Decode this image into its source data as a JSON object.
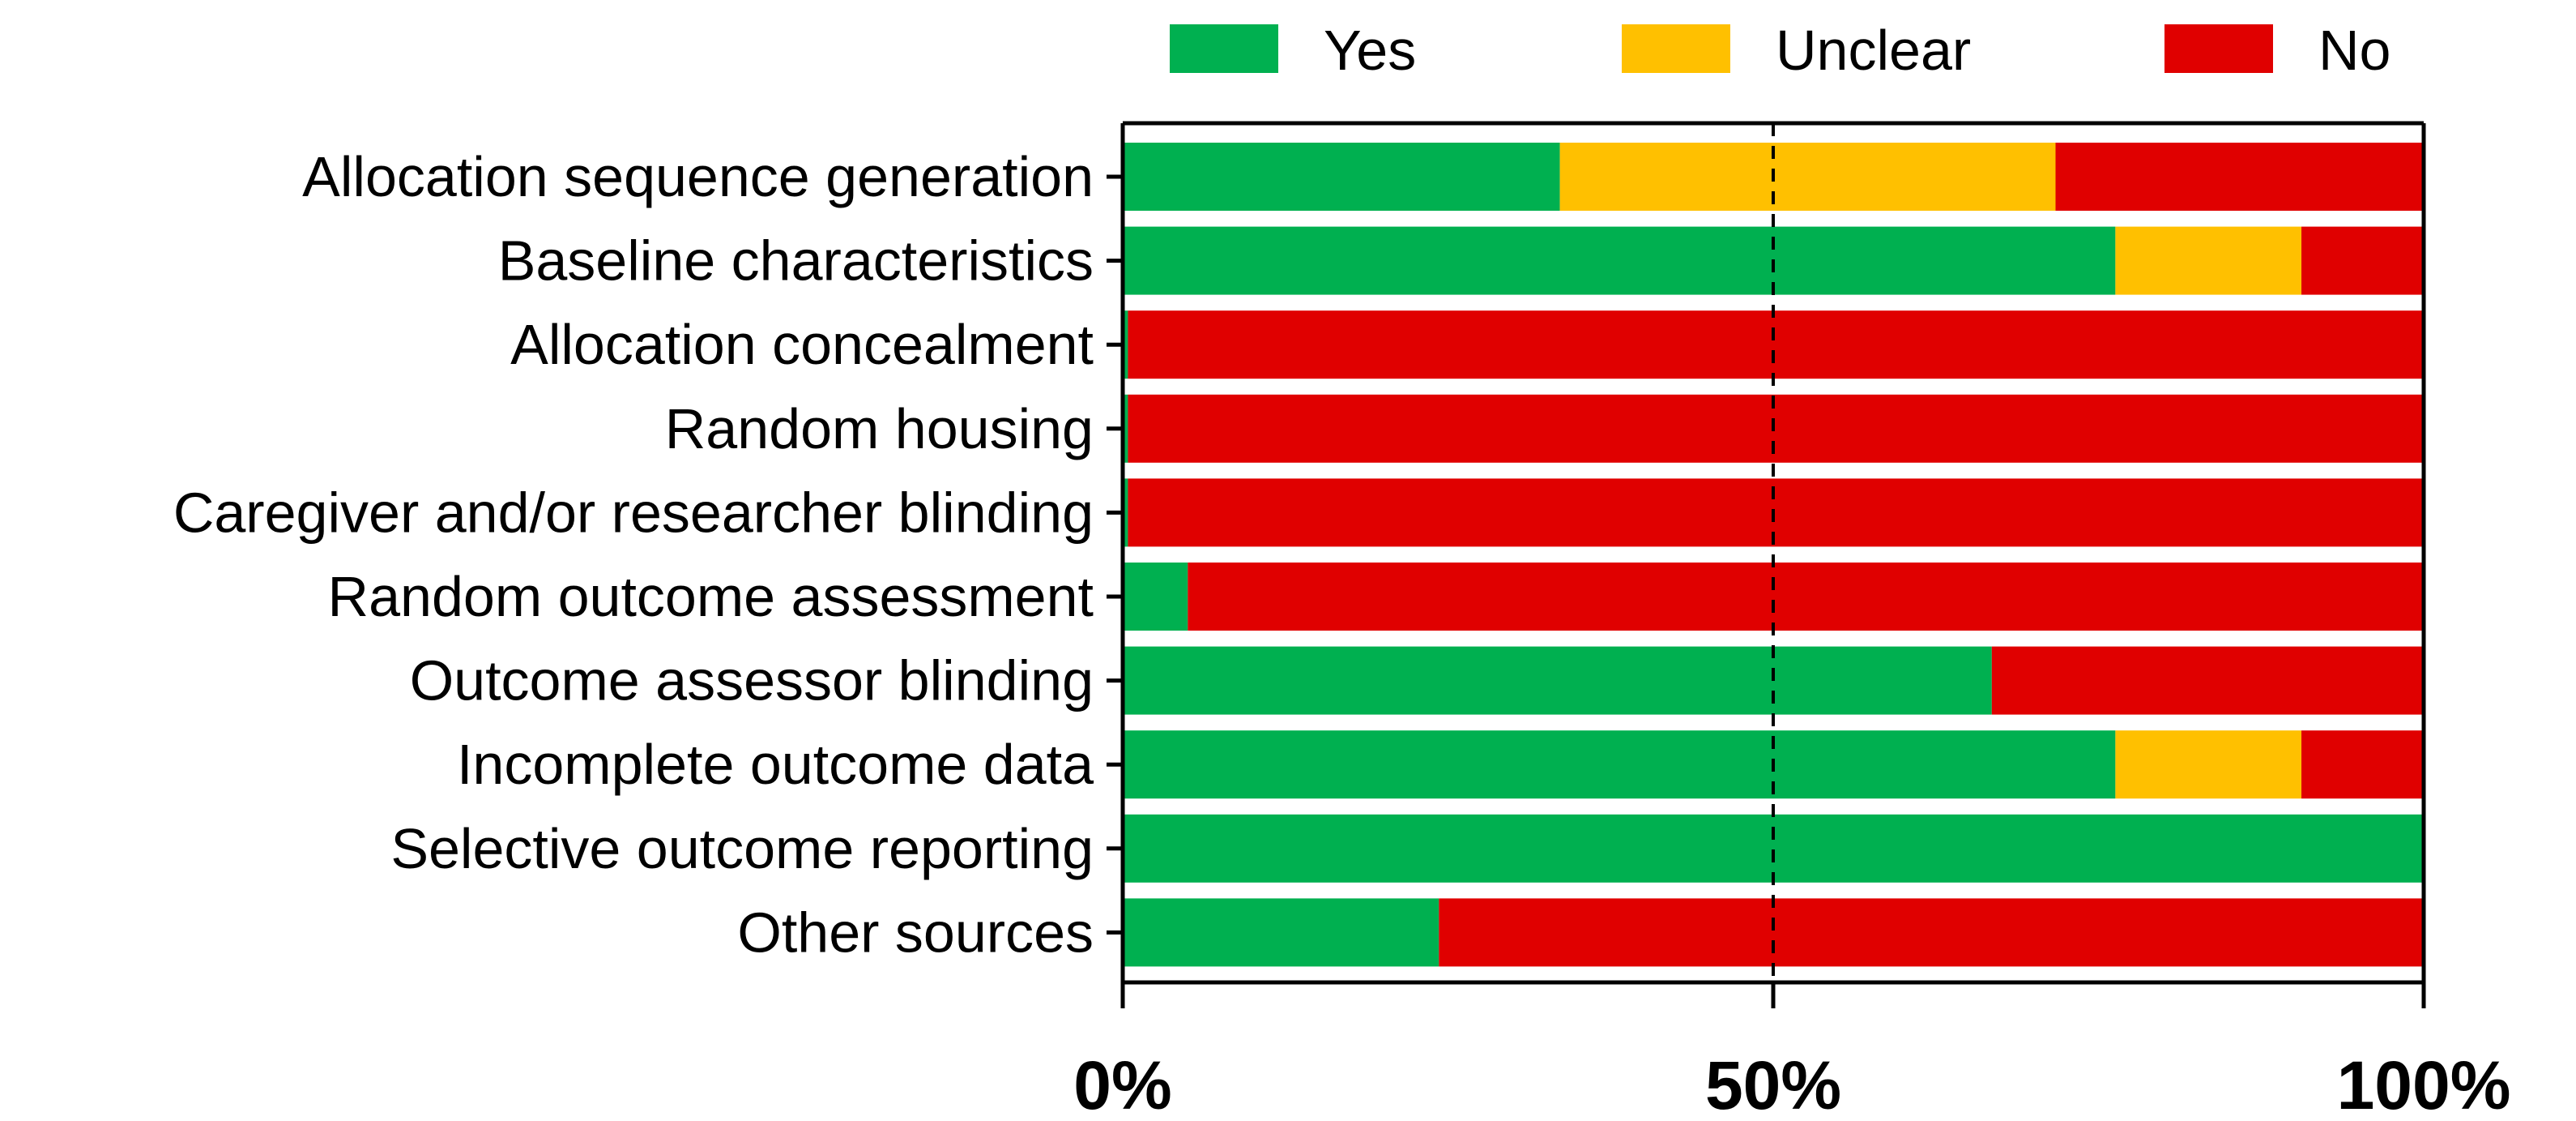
{
  "chart_data": {
    "type": "bar",
    "orientation": "horizontal",
    "stacked": true,
    "percent_stacked": true,
    "title": "",
    "xlabel": "",
    "ylabel": "",
    "xlim": [
      0,
      100
    ],
    "x_ticks": [
      0,
      50,
      100
    ],
    "x_tick_labels": [
      "0%",
      "50%",
      "100%"
    ],
    "reference_line_at": 50,
    "legend": [
      "Yes",
      "Unclear",
      "No"
    ],
    "legend_position": "top",
    "categories": [
      "Allocation sequence generation",
      "Baseline characteristics",
      "Allocation concealment",
      "Random housing",
      "Caregiver and/or researcher blinding",
      "Random outcome assessment",
      "Outcome assessor blinding",
      "Incomplete outcome data",
      "Selective outcome reporting",
      "Other sources"
    ],
    "series": [
      {
        "name": "Yes",
        "color": "#00b050",
        "values": [
          33.6,
          76.3,
          0.4,
          0.4,
          0.4,
          5,
          66.8,
          76.3,
          100,
          24.3
        ]
      },
      {
        "name": "Unclear",
        "color": "#ffc000",
        "values": [
          38.1,
          14.3,
          0,
          0,
          0,
          0,
          0,
          14.3,
          0,
          0
        ]
      },
      {
        "name": "No",
        "color": "#e00000",
        "values": [
          28.3,
          9.4,
          99.6,
          99.6,
          99.6,
          95,
          33.2,
          9.4,
          0,
          75.7
        ]
      }
    ]
  }
}
